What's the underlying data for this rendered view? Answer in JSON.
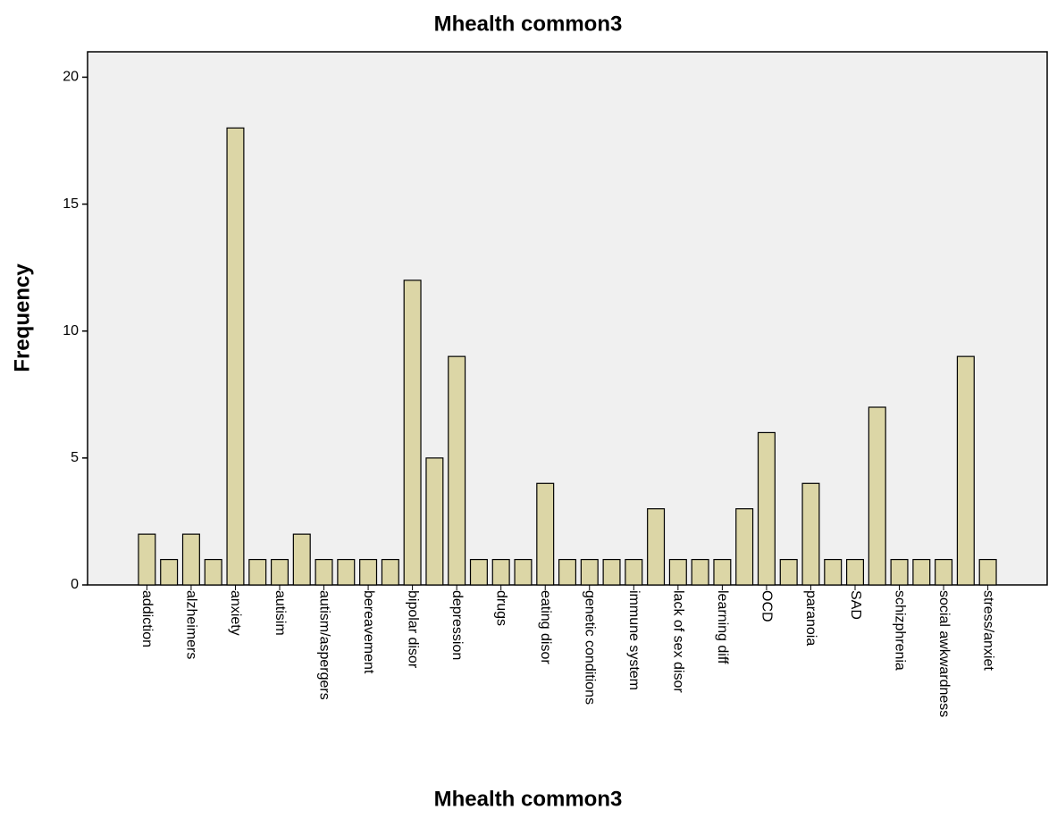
{
  "chart_data": {
    "type": "bar",
    "title": "Mhealth common3",
    "x_label": "Mhealth common3",
    "y_label": "Frequency",
    "categories": [
      "addiction",
      null,
      "alzheimers",
      null,
      "anxiety",
      null,
      "autisim",
      null,
      "autism/aspergers",
      null,
      "bereavement",
      null,
      "bipolar disor",
      null,
      "depression",
      null,
      "drugs",
      null,
      "eating disor",
      null,
      "genetic conditions",
      null,
      "immune system",
      null,
      "lack of sex disor",
      null,
      "learning diff",
      null,
      "OCD",
      null,
      "paranoia",
      null,
      "SAD",
      null,
      "schizphrenia",
      null,
      "social awkwardness",
      null,
      "stress/anxiet"
    ],
    "values": [
      2,
      1,
      2,
      1,
      18,
      1,
      1,
      2,
      1,
      1,
      1,
      1,
      12,
      5,
      9,
      1,
      1,
      1,
      4,
      1,
      1,
      1,
      1,
      3,
      1,
      1,
      1,
      3,
      6,
      1,
      4,
      1,
      1,
      7,
      1,
      1,
      1,
      9,
      1
    ],
    "color": "#dcd6a6",
    "ylim": [
      0,
      21
    ],
    "yticks": [
      0,
      5,
      10,
      15,
      20
    ],
    "grid": false
  }
}
